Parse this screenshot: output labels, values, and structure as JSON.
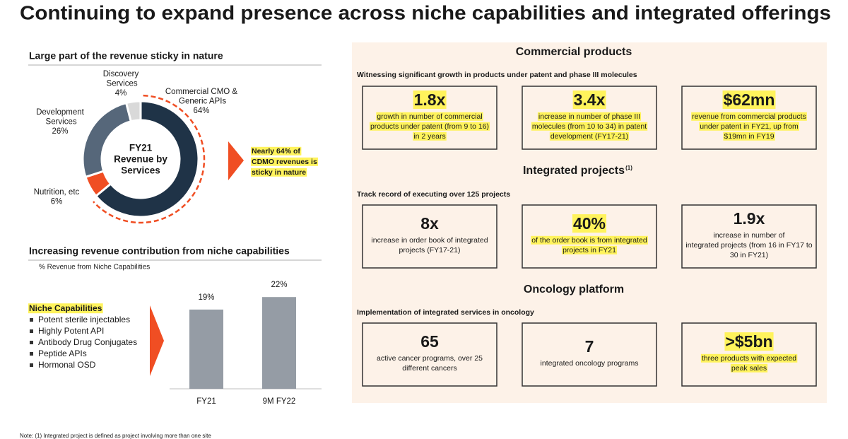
{
  "title": "Continuing to expand presence across niche capabilities and integrated offerings",
  "chart_data": [
    {
      "type": "pie",
      "donut": true,
      "title": "Large part of the revenue sticky in nature",
      "center_label": [
        "FY21",
        "Revenue by",
        "Services"
      ],
      "categories": [
        "Commercial CMO & Generic APIs",
        "Nutrition, etc",
        "Development Services",
        "Discovery Services"
      ],
      "values": [
        64,
        6,
        26,
        4
      ],
      "value_labels": [
        "64%",
        "6%",
        "26%",
        "4%"
      ],
      "colors": [
        "#1f3347",
        "#f04e23",
        "#56677a",
        "#d9d9d9"
      ],
      "annotation": [
        "Nearly 64% of",
        "CDMO revenues is",
        "sticky in nature"
      ]
    },
    {
      "type": "bar",
      "title": "Increasing revenue contribution from niche capabilities",
      "subtitle": "% Revenue from Niche Capabilities",
      "categories": [
        "FY21",
        "9M FY22"
      ],
      "values": [
        19,
        22
      ],
      "value_labels": [
        "19%",
        "22%"
      ],
      "color": "#959ca5"
    }
  ],
  "niche_capabilities": {
    "title": "Niche Capabilities",
    "items": [
      "Potent sterile injectables",
      "Highly Potent API",
      "Antibody Drug Conjugates",
      "Peptide APIs",
      "Hormonal OSD"
    ]
  },
  "sections": [
    {
      "heading": "Commercial products",
      "subheading": "Witnessing significant growth in products under patent and phase III molecules",
      "cards": [
        {
          "figure": "1.8x",
          "highlight": true,
          "text": [
            "growth in number of commercial",
            "products under patent (from 9 to 16)",
            "in 2 years"
          ]
        },
        {
          "figure": "3.4x",
          "highlight": true,
          "text": [
            "increase in number of phase III",
            "molecules (from 10 to 34) in patent",
            "development (FY17-21)"
          ]
        },
        {
          "figure": "$62mn",
          "highlight": true,
          "text": [
            "revenue from commercial products",
            "under patent in FY21, up from",
            "$19mn in FY19"
          ]
        }
      ]
    },
    {
      "heading": "Integrated projects",
      "heading_note": "(1)",
      "subheading": "Track record of executing over 125 projects",
      "cards": [
        {
          "figure": "8x",
          "highlight": false,
          "text": [
            "increase in order book of integrated",
            "projects (FY17-21)"
          ]
        },
        {
          "figure": "40%",
          "highlight": true,
          "text": [
            "of the order book is from integrated",
            "projects in FY21"
          ]
        },
        {
          "figure": "1.9x",
          "highlight": false,
          "text": [
            "increase in number of",
            "integrated projects (from 16 in FY17 to",
            "30 in FY21)"
          ]
        }
      ]
    },
    {
      "heading": "Oncology platform",
      "subheading": "Implementation of integrated services in oncology",
      "cards": [
        {
          "figure": "65",
          "highlight": false,
          "text": [
            "active cancer programs, over 25",
            "different cancers"
          ]
        },
        {
          "figure": "7",
          "highlight": false,
          "text": [
            "integrated oncology programs"
          ]
        },
        {
          "figure": ">$5bn",
          "highlight": true,
          "text": [
            "three products with expected",
            "peak sales"
          ]
        }
      ]
    }
  ],
  "footnote": "Note: (1) Integrated project is defined as project involving more than one site"
}
